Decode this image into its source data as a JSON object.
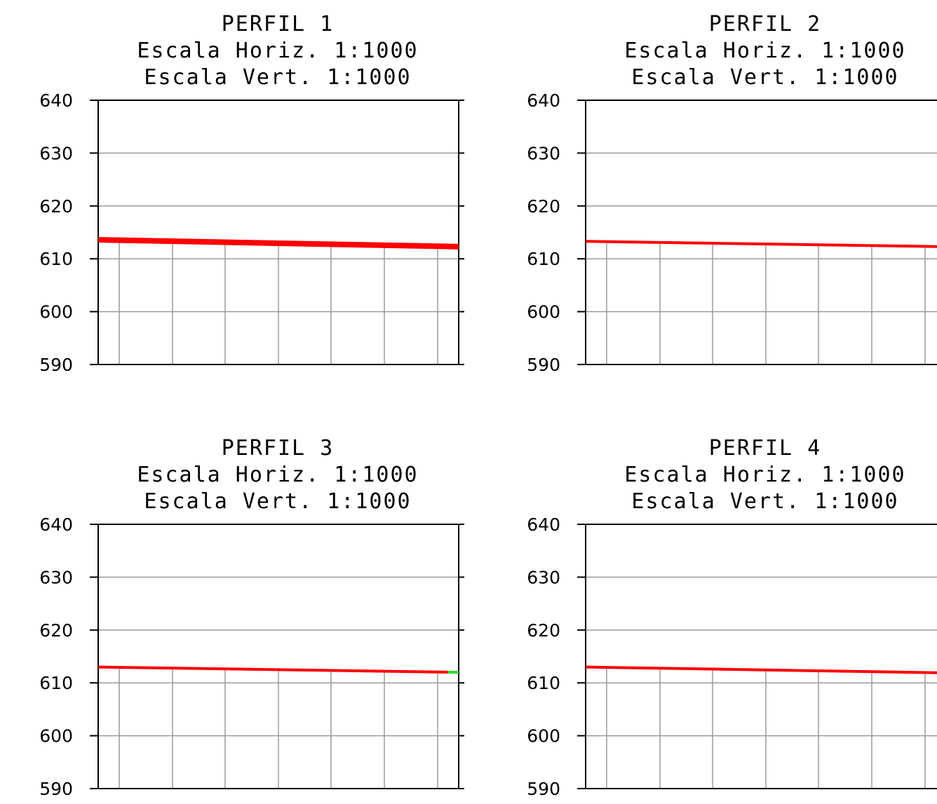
{
  "chart_data": [
    {
      "type": "line",
      "title": "PERFIL 1",
      "subtitle_lines": [
        "Escala Horiz. 1:1000",
        "Escala Vert. 1:1000"
      ],
      "yticks": [
        "640",
        "630",
        "620",
        "610",
        "600",
        "590"
      ],
      "ylim": [
        590,
        640
      ],
      "grid": true,
      "x": [
        0,
        100
      ],
      "series": [
        {
          "color": "#ff0000",
          "values": [
            613.6,
            612.3
          ]
        }
      ]
    },
    {
      "type": "line",
      "title": "PERFIL 2",
      "subtitle_lines": [
        "Escala Horiz. 1:1000",
        "Escala Vert. 1:1000"
      ],
      "yticks": [
        "640",
        "630",
        "620",
        "610",
        "600",
        "590"
      ],
      "ylim": [
        590,
        640
      ],
      "grid": true,
      "x": [
        0,
        100
      ],
      "series": [
        {
          "color": "#ff0000",
          "values": [
            613.3,
            612.3
          ]
        }
      ]
    },
    {
      "type": "line",
      "title": "PERFIL 3",
      "subtitle_lines": [
        "Escala Horiz. 1:1000",
        "Escala Vert. 1:1000"
      ],
      "yticks": [
        "640",
        "630",
        "620",
        "610",
        "600",
        "590"
      ],
      "ylim": [
        590,
        640
      ],
      "grid": true,
      "x": [
        0,
        100
      ],
      "series": [
        {
          "color": "#ff0000",
          "values": [
            613.0,
            612.0
          ]
        },
        {
          "color": "#33dd33",
          "values": [
            612.0,
            612.0
          ],
          "x": [
            97,
            100
          ]
        }
      ]
    },
    {
      "type": "line",
      "title": "PERFIL 4",
      "subtitle_lines": [
        "Escala Horiz. 1:1000",
        "Escala Vert. 1:1000"
      ],
      "yticks": [
        "640",
        "630",
        "620",
        "610",
        "600",
        "590"
      ],
      "ylim": [
        590,
        640
      ],
      "grid": true,
      "x": [
        0,
        100
      ],
      "series": [
        {
          "color": "#ff0000",
          "values": [
            613.0,
            611.9
          ]
        }
      ]
    }
  ]
}
